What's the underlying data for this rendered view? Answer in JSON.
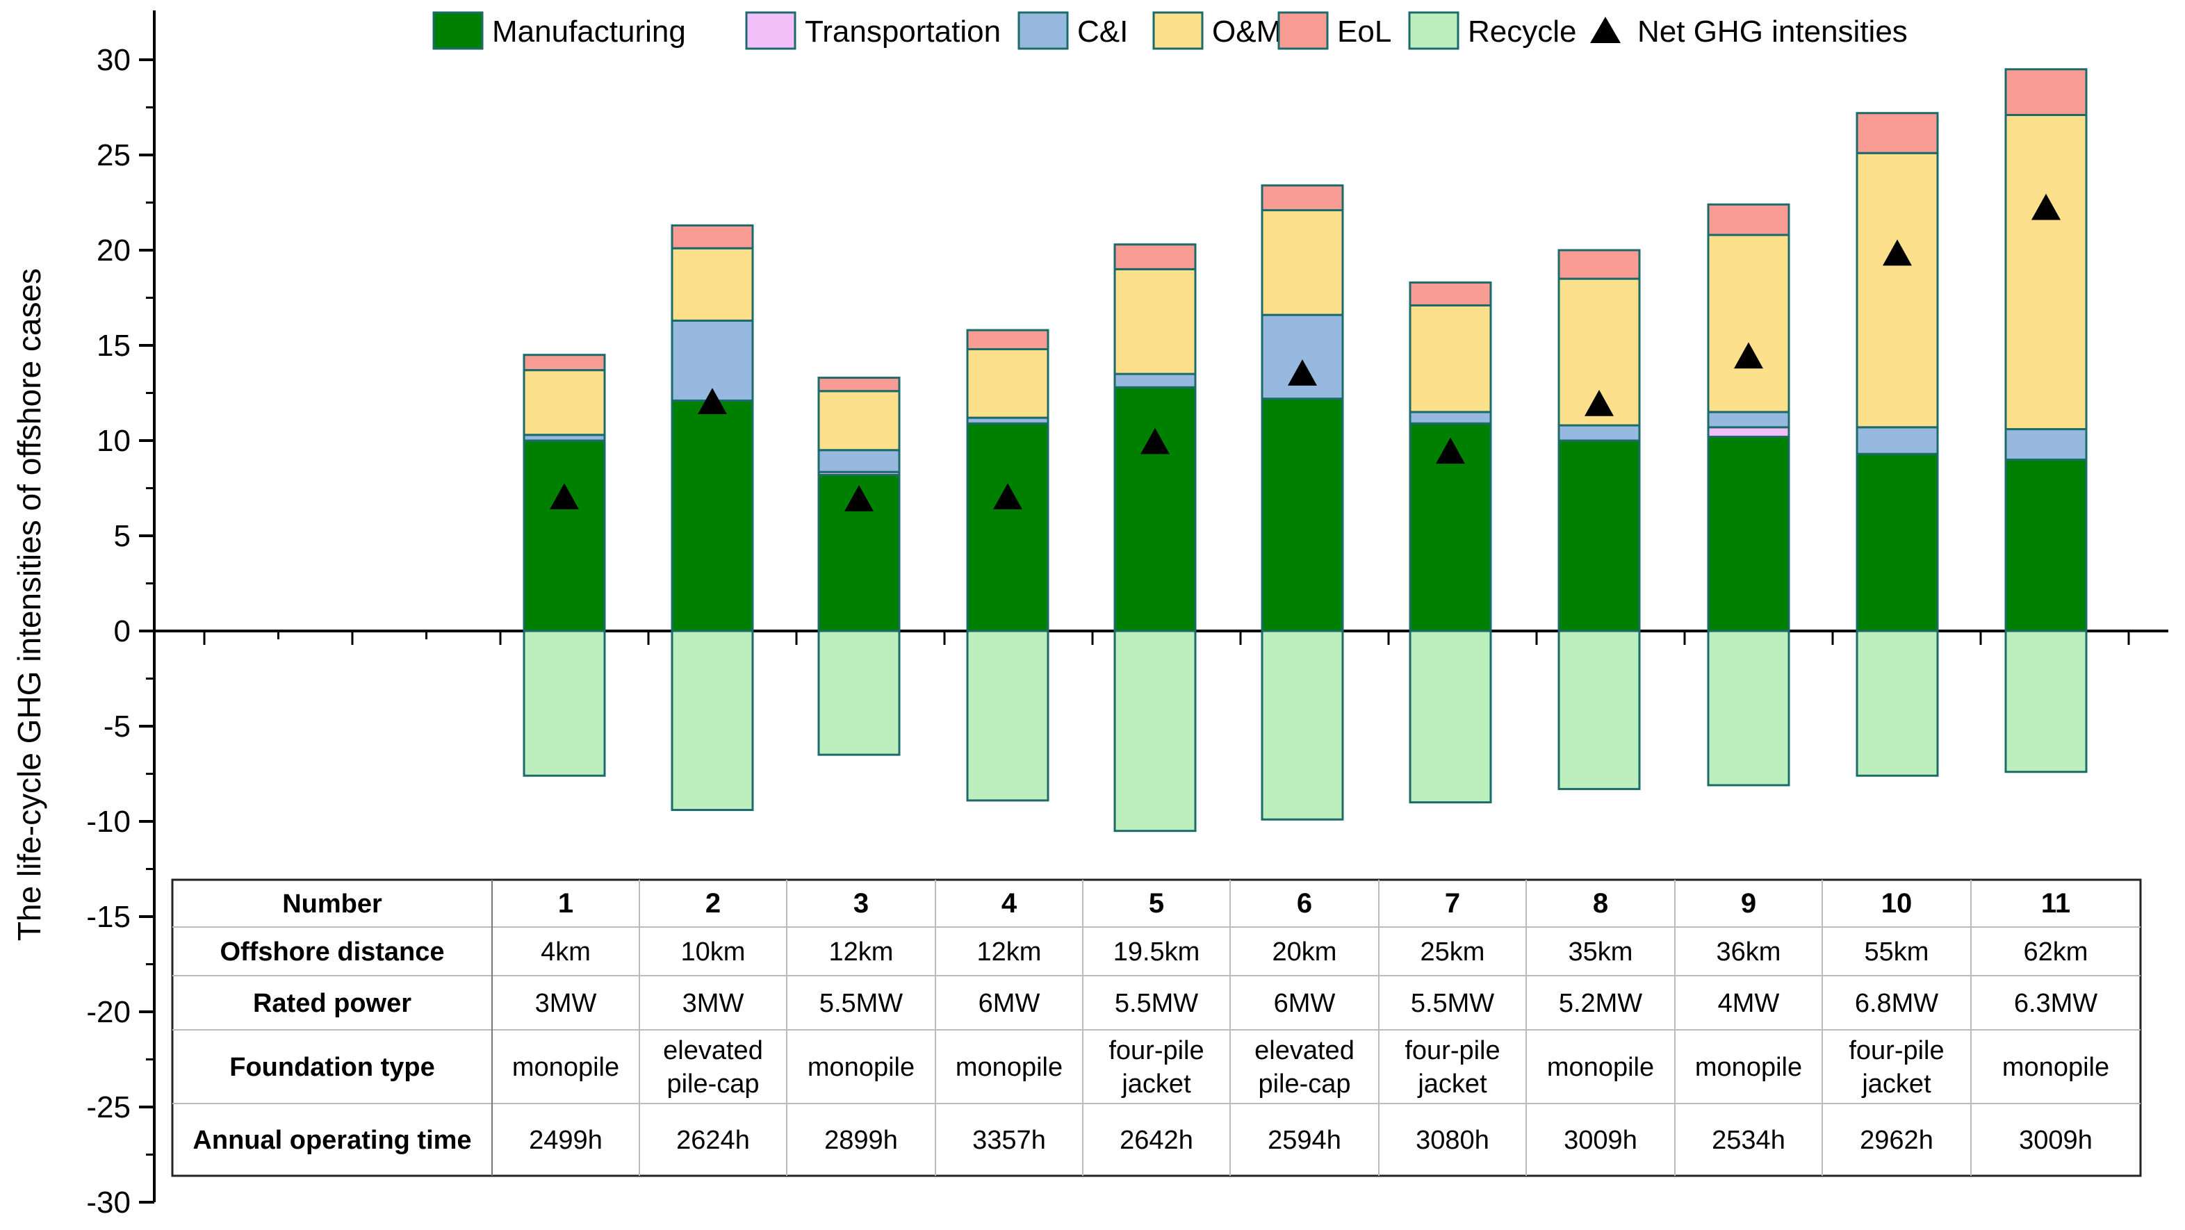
{
  "chart_data": {
    "type": "bar",
    "stacked": true,
    "ylabel": "The life-cycle GHG intensities of offshore cases",
    "ylim": [
      -30,
      32
    ],
    "yticks": [
      30,
      25,
      20,
      15,
      10,
      5,
      0,
      -5,
      -10,
      -15,
      -20,
      -25,
      -30
    ],
    "categories": [
      "1",
      "2",
      "3",
      "4",
      "5",
      "6",
      "7",
      "8",
      "9",
      "10",
      "11"
    ],
    "legend": [
      "Manufacturing",
      "Transportation",
      "C&I",
      "O&M",
      "EoL",
      "Recycle",
      "Net GHG intensities"
    ],
    "series": [
      {
        "name": "Manufacturing",
        "color": "#008000",
        "values": [
          10.0,
          12.1,
          8.2,
          10.9,
          12.8,
          12.2,
          10.9,
          10.0,
          10.2,
          9.3,
          9.0
        ]
      },
      {
        "name": "Transportation",
        "color": "#f2bff8",
        "values": [
          0.0,
          0.0,
          0.15,
          0.0,
          0.0,
          0.0,
          0.0,
          0.0,
          0.5,
          0.0,
          0.0
        ]
      },
      {
        "name": "C&I",
        "color": "#97b9df",
        "values": [
          0.3,
          4.2,
          1.15,
          0.3,
          0.7,
          4.4,
          0.6,
          0.8,
          0.8,
          1.4,
          1.6
        ]
      },
      {
        "name": "O&M",
        "color": "#fde08c",
        "values": [
          3.4,
          3.8,
          3.1,
          3.6,
          5.5,
          5.5,
          5.6,
          7.7,
          9.3,
          14.4,
          16.5
        ]
      },
      {
        "name": "EoL",
        "color": "#f99c94",
        "values": [
          0.8,
          1.2,
          0.7,
          1.0,
          1.3,
          1.3,
          1.2,
          1.5,
          1.6,
          2.1,
          2.4
        ]
      },
      {
        "name": "Recycle",
        "color": "#bdeebd",
        "values": [
          -7.6,
          -9.4,
          -6.5,
          -8.9,
          -10.5,
          -9.9,
          -9.0,
          -8.3,
          -8.1,
          -7.6,
          -7.4
        ]
      }
    ],
    "net": {
      "name": "Net GHG intensities",
      "values": [
        7.0,
        12.0,
        6.9,
        7.0,
        9.9,
        13.5,
        9.4,
        11.9,
        14.4,
        19.8,
        22.2
      ]
    }
  },
  "table": {
    "row_headers": [
      "Number",
      "Offshore distance",
      "Rated power",
      "Foundation type",
      "Annual operating time"
    ],
    "numbers": [
      "1",
      "2",
      "3",
      "4",
      "5",
      "6",
      "7",
      "8",
      "9",
      "10",
      "11"
    ],
    "distance": [
      "4km",
      "10km",
      "12km",
      "12km",
      "19.5km",
      "20km",
      "25km",
      "35km",
      "36km",
      "55km",
      "62km"
    ],
    "power": [
      "3MW",
      "3MW",
      "5.5MW",
      "6MW",
      "5.5MW",
      "6MW",
      "5.5MW",
      "5.2MW",
      "4MW",
      "6.8MW",
      "6.3MW"
    ],
    "foundation": [
      "monopile",
      "elevated pile-cap",
      "monopile",
      "monopile",
      "four-pile jacket",
      "elevated pile-cap",
      "four-pile jacket",
      "monopile",
      "monopile",
      "four-pile jacket",
      "monopile"
    ],
    "time": [
      "2499h",
      "2624h",
      "2899h",
      "3357h",
      "2642h",
      "2594h",
      "3080h",
      "3009h",
      "2534h",
      "2962h",
      "3009h"
    ]
  }
}
